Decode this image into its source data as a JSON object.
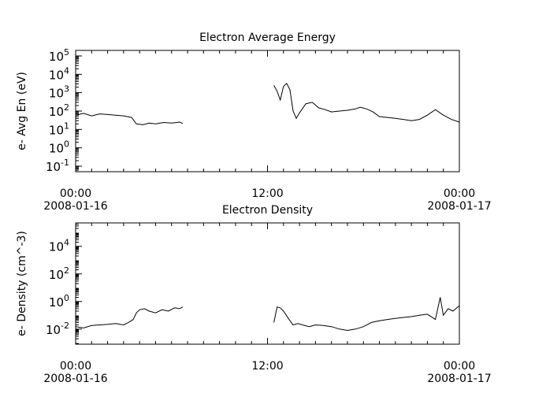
{
  "chart_data": [
    {
      "type": "line",
      "title": "Electron Average Energy",
      "ylabel": "e- Avg En (eV)",
      "xlabel": "",
      "yscale": "log",
      "xlim_hours": [
        0,
        24
      ],
      "ylim": [
        0.05,
        200000
      ],
      "yticks": [
        {
          "base": "10",
          "exp": "-1",
          "value": 0.1
        },
        {
          "base": "10",
          "exp": "0",
          "value": 1
        },
        {
          "base": "10",
          "exp": "1",
          "value": 10
        },
        {
          "base": "10",
          "exp": "2",
          "value": 100
        },
        {
          "base": "10",
          "exp": "3",
          "value": 1000
        },
        {
          "base": "10",
          "exp": "4",
          "value": 10000
        },
        {
          "base": "10",
          "exp": "5",
          "value": 100000
        }
      ],
      "xticks": [
        {
          "time": "00:00",
          "date": "2008-01-16",
          "hour": 0
        },
        {
          "time": "12:00",
          "date": "",
          "hour": 12
        },
        {
          "time": "00:00",
          "date": "2008-01-17",
          "hour": 24
        }
      ],
      "series": [
        {
          "segments": [
            {
              "x": [
                0.0,
                0.5,
                1.0,
                1.5,
                2.0,
                2.5,
                3.0,
                3.5,
                3.8,
                4.2,
                4.6,
                5.0,
                5.5,
                6.0,
                6.5,
                6.7
              ],
              "y": [
                60,
                75,
                55,
                70,
                65,
                60,
                55,
                45,
                20,
                18,
                22,
                20,
                24,
                22,
                25,
                21
              ]
            },
            {
              "x": [
                12.4,
                12.6,
                12.8,
                13.0,
                13.2,
                13.4,
                13.6,
                13.8,
                14.0,
                14.4,
                14.8,
                15.2,
                15.6,
                16.0,
                16.5,
                17.0,
                17.5,
                17.8,
                18.2,
                18.6,
                19.0,
                19.5,
                20.0,
                20.5,
                21.0,
                21.5,
                22.0,
                22.5,
                23.0,
                23.5,
                24.0
              ],
              "y": [
                2500,
                1200,
                400,
                2200,
                3200,
                1500,
                100,
                40,
                80,
                250,
                300,
                150,
                120,
                90,
                100,
                110,
                130,
                160,
                130,
                90,
                50,
                45,
                40,
                35,
                30,
                35,
                60,
                120,
                60,
                35,
                25
              ]
            }
          ]
        }
      ]
    },
    {
      "type": "line",
      "title": "Electron Density",
      "ylabel": "e- Density (cm^-3)",
      "xlabel": "",
      "yscale": "log",
      "xlim_hours": [
        0,
        24
      ],
      "ylim": [
        0.0008,
        500000
      ],
      "yticks": [
        {
          "base": "10",
          "exp": "-2",
          "value": 0.01
        },
        {
          "base": "10",
          "exp": "0",
          "value": 1
        },
        {
          "base": "10",
          "exp": "2",
          "value": 100
        },
        {
          "base": "10",
          "exp": "4",
          "value": 10000
        }
      ],
      "xticks": [
        {
          "time": "00:00",
          "date": "2008-01-16",
          "hour": 0
        },
        {
          "time": "12:00",
          "date": "",
          "hour": 12
        },
        {
          "time": "00:00",
          "date": "2008-01-17",
          "hour": 24
        }
      ],
      "series": [
        {
          "segments": [
            {
              "x": [
                0.0,
                0.5,
                1.0,
                1.5,
                2.0,
                2.5,
                3.0,
                3.3,
                3.6,
                3.8,
                4.0,
                4.3,
                4.6,
                5.0,
                5.4,
                5.8,
                6.2,
                6.5,
                6.7
              ],
              "y": [
                0.015,
                0.012,
                0.018,
                0.02,
                0.022,
                0.025,
                0.02,
                0.03,
                0.05,
                0.15,
                0.25,
                0.3,
                0.2,
                0.15,
                0.25,
                0.2,
                0.35,
                0.3,
                0.4
              ]
            },
            {
              "x": [
                12.4,
                12.6,
                12.8,
                13.0,
                13.3,
                13.6,
                13.9,
                14.2,
                14.6,
                15.0,
                15.5,
                16.0,
                16.5,
                17.0,
                17.5,
                18.0,
                18.5,
                19.0,
                19.5,
                20.0,
                20.5,
                21.0,
                21.5,
                22.0,
                22.5,
                22.8,
                23.0,
                23.3,
                23.6,
                24.0
              ],
              "y": [
                0.03,
                0.4,
                0.35,
                0.2,
                0.06,
                0.02,
                0.025,
                0.02,
                0.015,
                0.02,
                0.018,
                0.015,
                0.01,
                0.008,
                0.01,
                0.015,
                0.03,
                0.04,
                0.05,
                0.06,
                0.07,
                0.08,
                0.1,
                0.12,
                0.05,
                2.0,
                0.1,
                0.3,
                0.2,
                0.5
              ]
            }
          ]
        }
      ]
    }
  ]
}
